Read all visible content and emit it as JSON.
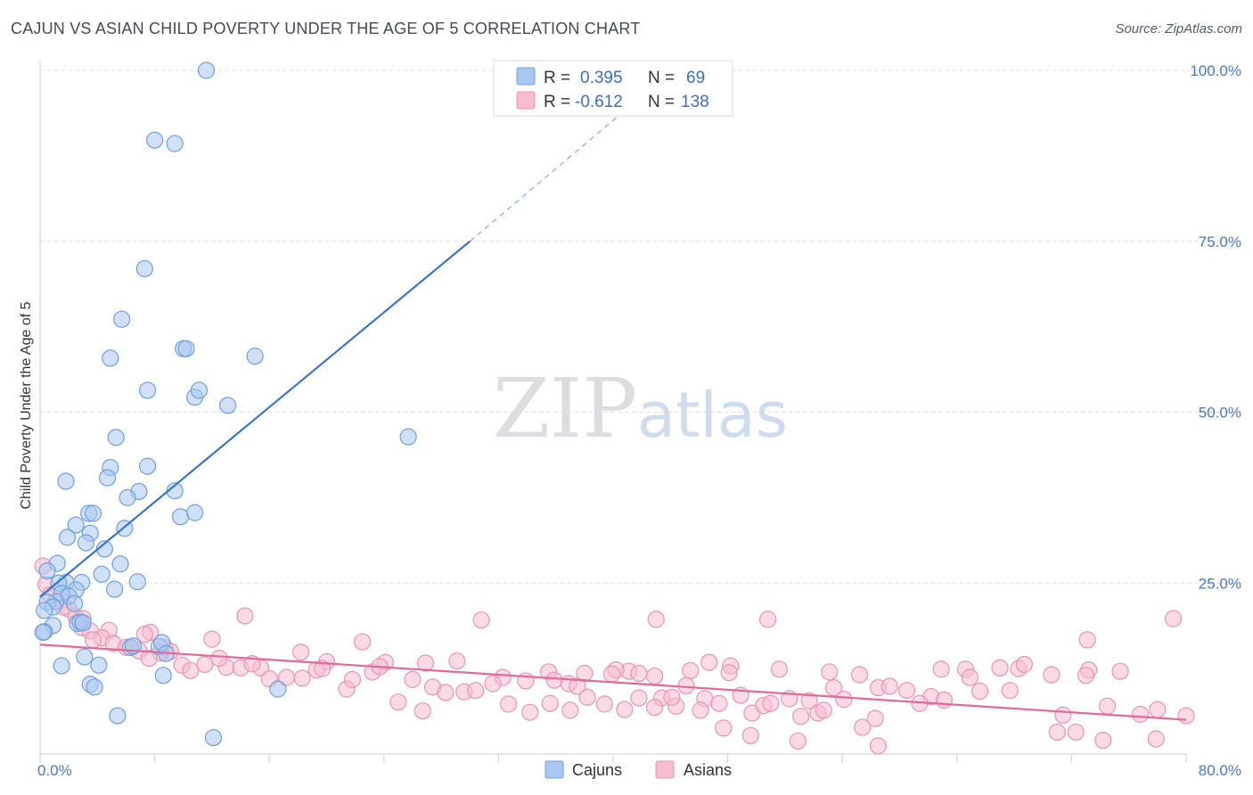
{
  "title": "CAJUN VS ASIAN CHILD POVERTY UNDER THE AGE OF 5 CORRELATION CHART",
  "source": "Source: ZipAtlas.com",
  "watermark": {
    "part1": "ZIP",
    "part2": "atlas"
  },
  "colors": {
    "cajun_fill": "#a9c8f0",
    "cajun_stroke": "#6f9fdc",
    "cajun_line": "#3a74cc",
    "asian_fill": "#f6bcd0",
    "asian_stroke": "#e994b3",
    "asian_line": "#e06a98",
    "axis_label": "#4a78c2",
    "grid": "#dddddd"
  },
  "legend": {
    "r_label": "R =",
    "n_label": "N =",
    "cajun": {
      "r": "0.395",
      "n": "69"
    },
    "asian": {
      "r": "-0.612",
      "n": "138"
    }
  },
  "bottom_legend": {
    "cajun": "Cajuns",
    "asian": "Asians"
  },
  "chart_data": {
    "type": "scatter",
    "title": "CAJUN VS ASIAN CHILD POVERTY UNDER THE AGE OF 5 CORRELATION CHART",
    "xlabel": "",
    "ylabel": "Child Poverty Under the Age of 5",
    "xlim": [
      0,
      80
    ],
    "ylim": [
      0,
      100
    ],
    "x_tick_labels": [
      "0.0%",
      "80.0%"
    ],
    "y_tick_labels": [
      "25.0%",
      "50.0%",
      "75.0%",
      "100.0%"
    ],
    "y_ticks": [
      25,
      50,
      75,
      100
    ],
    "grid": true,
    "legend_position": "top-center",
    "series": [
      {
        "name": "Cajuns",
        "r": 0.395,
        "n": 69,
        "trend": {
          "x0": 0.0,
          "y0": 23.0,
          "x1": 30.0,
          "y1": 75.0,
          "dash_to_x": 43.0,
          "dash_to_y": 98.0
        },
        "points": [
          [
            11.6,
            100.0
          ],
          [
            8.0,
            89.8
          ],
          [
            9.4,
            89.3
          ],
          [
            7.3,
            71.0
          ],
          [
            5.7,
            63.6
          ],
          [
            4.9,
            57.9
          ],
          [
            10.0,
            59.3
          ],
          [
            10.2,
            59.3
          ],
          [
            15.0,
            58.2
          ],
          [
            7.5,
            53.2
          ],
          [
            10.8,
            52.2
          ],
          [
            11.1,
            53.2
          ],
          [
            13.1,
            51.0
          ],
          [
            25.7,
            46.4
          ],
          [
            5.3,
            46.3
          ],
          [
            4.9,
            41.9
          ],
          [
            7.5,
            42.1
          ],
          [
            4.7,
            40.4
          ],
          [
            1.8,
            39.9
          ],
          [
            6.9,
            38.4
          ],
          [
            6.1,
            37.5
          ],
          [
            9.4,
            38.5
          ],
          [
            3.4,
            35.2
          ],
          [
            3.7,
            35.2
          ],
          [
            9.8,
            34.7
          ],
          [
            10.8,
            35.3
          ],
          [
            2.5,
            33.5
          ],
          [
            5.9,
            33.0
          ],
          [
            3.5,
            32.3
          ],
          [
            1.9,
            31.7
          ],
          [
            3.2,
            30.9
          ],
          [
            4.5,
            30.0
          ],
          [
            1.2,
            27.9
          ],
          [
            5.6,
            27.8
          ],
          [
            0.5,
            26.8
          ],
          [
            4.3,
            26.3
          ],
          [
            6.8,
            25.2
          ],
          [
            2.9,
            25.1
          ],
          [
            1.8,
            25.1
          ],
          [
            1.3,
            25.0
          ],
          [
            2.5,
            24.0
          ],
          [
            5.2,
            24.1
          ],
          [
            1.5,
            23.5
          ],
          [
            2.0,
            23.1
          ],
          [
            1.1,
            22.3
          ],
          [
            0.5,
            22.2
          ],
          [
            2.4,
            22.0
          ],
          [
            0.9,
            21.5
          ],
          [
            0.3,
            21.0
          ],
          [
            2.6,
            19.1
          ],
          [
            2.8,
            19.3
          ],
          [
            3.0,
            19.2
          ],
          [
            0.9,
            18.8
          ],
          [
            0.3,
            17.9
          ],
          [
            0.2,
            17.8
          ],
          [
            6.3,
            15.6
          ],
          [
            8.3,
            15.7
          ],
          [
            8.5,
            16.3
          ],
          [
            8.8,
            14.7
          ],
          [
            3.1,
            14.2
          ],
          [
            1.5,
            12.9
          ],
          [
            4.1,
            13.0
          ],
          [
            8.6,
            11.5
          ],
          [
            3.5,
            10.2
          ],
          [
            3.8,
            9.8
          ],
          [
            16.6,
            9.5
          ],
          [
            5.4,
            5.6
          ],
          [
            12.1,
            2.4
          ],
          [
            6.5,
            15.8
          ]
        ]
      },
      {
        "name": "Asians",
        "r": -0.612,
        "n": 138,
        "trend": {
          "x0": 0.0,
          "y0": 16.0,
          "x1": 80.0,
          "y1": 5.0
        },
        "points": [
          [
            0.2,
            27.5
          ],
          [
            0.4,
            24.8
          ],
          [
            0.7,
            23.3
          ],
          [
            1.5,
            22.5
          ],
          [
            2.0,
            21.2
          ],
          [
            1.6,
            21.5
          ],
          [
            2.5,
            20.1
          ],
          [
            3.0,
            19.8
          ],
          [
            2.9,
            18.5
          ],
          [
            3.5,
            18.0
          ],
          [
            4.8,
            18.1
          ],
          [
            7.7,
            17.8
          ],
          [
            7.3,
            17.5
          ],
          [
            4.3,
            17.0
          ],
          [
            3.7,
            16.7
          ],
          [
            5.1,
            16.2
          ],
          [
            6.0,
            15.6
          ],
          [
            6.9,
            15.1
          ],
          [
            8.7,
            15.6
          ],
          [
            9.1,
            15.0
          ],
          [
            12.0,
            16.8
          ],
          [
            14.3,
            20.2
          ],
          [
            18.2,
            14.9
          ],
          [
            20.0,
            13.5
          ],
          [
            22.5,
            16.4
          ],
          [
            24.1,
            13.4
          ],
          [
            26.9,
            13.3
          ],
          [
            29.1,
            13.6
          ],
          [
            30.8,
            19.6
          ],
          [
            35.5,
            12.0
          ],
          [
            41.1,
            12.1
          ],
          [
            42.9,
            11.4
          ],
          [
            41.8,
            11.8
          ],
          [
            40.2,
            12.3
          ],
          [
            45.4,
            12.2
          ],
          [
            46.7,
            13.4
          ],
          [
            48.2,
            12.9
          ],
          [
            51.6,
            12.4
          ],
          [
            55.1,
            12.0
          ],
          [
            57.2,
            11.6
          ],
          [
            62.9,
            12.4
          ],
          [
            64.6,
            12.4
          ],
          [
            67.0,
            12.6
          ],
          [
            68.3,
            12.5
          ],
          [
            68.7,
            13.1
          ],
          [
            70.6,
            11.6
          ],
          [
            73.1,
            16.7
          ],
          [
            73.2,
            12.3
          ],
          [
            75.4,
            12.1
          ],
          [
            79.1,
            19.8
          ],
          [
            43.0,
            19.7
          ],
          [
            50.8,
            19.7
          ],
          [
            9.9,
            13.0
          ],
          [
            11.5,
            13.1
          ],
          [
            13.0,
            12.7
          ],
          [
            14.0,
            12.6
          ],
          [
            15.4,
            12.6
          ],
          [
            16.0,
            11.0
          ],
          [
            17.2,
            11.2
          ],
          [
            18.3,
            11.1
          ],
          [
            19.3,
            12.3
          ],
          [
            19.7,
            12.5
          ],
          [
            21.4,
            9.5
          ],
          [
            21.8,
            10.9
          ],
          [
            23.2,
            12.0
          ],
          [
            23.7,
            12.8
          ],
          [
            26.0,
            10.9
          ],
          [
            27.4,
            9.8
          ],
          [
            28.3,
            9.0
          ],
          [
            29.6,
            9.1
          ],
          [
            30.4,
            9.3
          ],
          [
            32.3,
            11.2
          ],
          [
            32.7,
            7.3
          ],
          [
            33.9,
            10.7
          ],
          [
            35.9,
            10.8
          ],
          [
            36.9,
            10.3
          ],
          [
            37.5,
            9.9
          ],
          [
            38.2,
            8.3
          ],
          [
            39.4,
            7.3
          ],
          [
            40.8,
            6.5
          ],
          [
            41.8,
            8.2
          ],
          [
            43.4,
            8.2
          ],
          [
            44.4,
            7.0
          ],
          [
            45.1,
            10.0
          ],
          [
            46.4,
            8.1
          ],
          [
            47.4,
            7.4
          ],
          [
            48.9,
            8.6
          ],
          [
            49.7,
            6.0
          ],
          [
            50.5,
            7.1
          ],
          [
            52.3,
            8.1
          ],
          [
            53.7,
            7.8
          ],
          [
            55.4,
            9.7
          ],
          [
            56.1,
            8.0
          ],
          [
            58.5,
            9.7
          ],
          [
            59.3,
            9.9
          ],
          [
            60.5,
            9.3
          ],
          [
            62.2,
            8.4
          ],
          [
            63.1,
            7.9
          ],
          [
            65.6,
            9.2
          ],
          [
            71.4,
            5.7
          ],
          [
            73.0,
            11.5
          ],
          [
            74.5,
            7.0
          ],
          [
            76.8,
            5.8
          ],
          [
            78.0,
            6.5
          ],
          [
            80.0,
            5.6
          ],
          [
            8.4,
            14.8
          ],
          [
            10.5,
            12.2
          ],
          [
            7.6,
            14.0
          ],
          [
            12.5,
            14.0
          ],
          [
            14.8,
            13.2
          ],
          [
            25.0,
            7.6
          ],
          [
            26.7,
            6.3
          ],
          [
            31.6,
            10.3
          ],
          [
            34.2,
            6.1
          ],
          [
            35.6,
            7.4
          ],
          [
            37.0,
            6.4
          ],
          [
            38.0,
            11.8
          ],
          [
            39.9,
            11.7
          ],
          [
            42.9,
            6.8
          ],
          [
            44.1,
            8.3
          ],
          [
            46.1,
            6.4
          ],
          [
            47.7,
            3.8
          ],
          [
            48.1,
            11.9
          ],
          [
            51.0,
            7.4
          ],
          [
            53.1,
            5.5
          ],
          [
            54.3,
            6.0
          ],
          [
            54.7,
            6.4
          ],
          [
            57.4,
            3.9
          ],
          [
            58.3,
            5.2
          ],
          [
            61.4,
            7.4
          ],
          [
            64.9,
            11.2
          ],
          [
            67.7,
            9.3
          ],
          [
            71.0,
            3.2
          ],
          [
            72.3,
            3.2
          ],
          [
            74.2,
            2.0
          ],
          [
            77.9,
            2.2
          ],
          [
            58.5,
            1.2
          ],
          [
            52.9,
            1.9
          ],
          [
            49.6,
            2.7
          ]
        ]
      }
    ]
  }
}
